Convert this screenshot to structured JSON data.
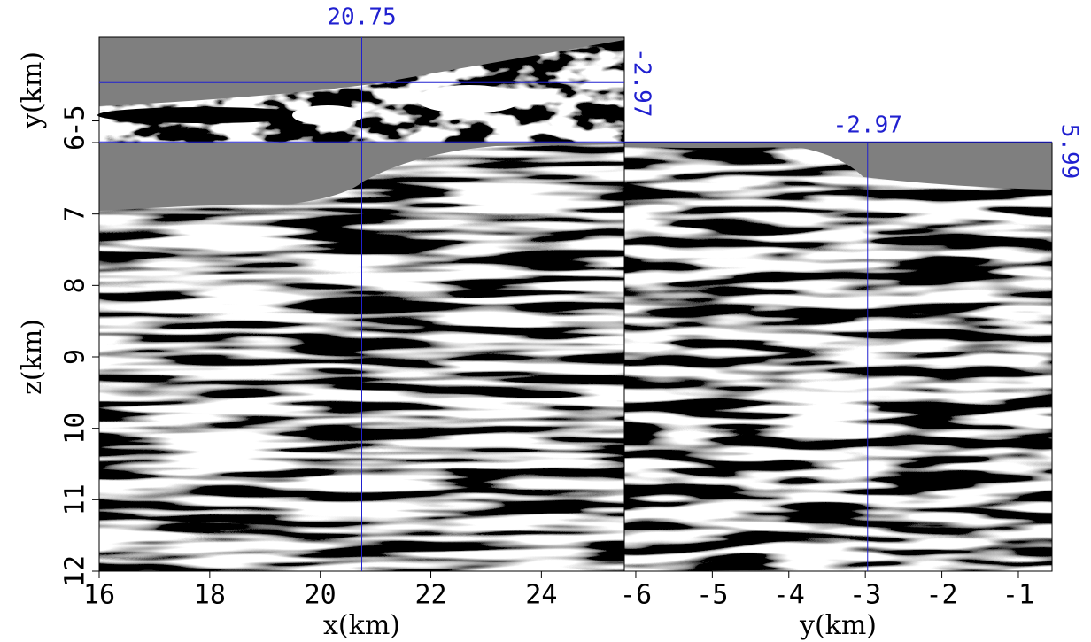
{
  "chart_data": [
    {
      "type": "image",
      "xlabel": "x(km)",
      "ylabel": "z(km)",
      "xlim": [
        16,
        25.5
      ],
      "ylim": [
        12,
        6
      ],
      "xticks": [
        16,
        18,
        20,
        22,
        24
      ],
      "yticks": [
        6,
        7,
        8,
        9,
        10,
        11,
        12
      ],
      "crosshair": {
        "x": 20.75,
        "y": -2.97,
        "z": 5.99
      },
      "color": "#2020d0"
    },
    {
      "type": "image",
      "ylabel": "y(km)",
      "xlim": [
        16,
        25.5
      ],
      "ylim": [
        -6.15,
        -0.56
      ],
      "yticks": [
        -5
      ]
    },
    {
      "type": "image",
      "xlabel": "y(km)",
      "xlim": [
        -6.15,
        -0.56
      ],
      "ylim": [
        12,
        6
      ],
      "xticks": [
        -6,
        -5,
        -4,
        -3,
        -2,
        -1
      ]
    }
  ]
}
